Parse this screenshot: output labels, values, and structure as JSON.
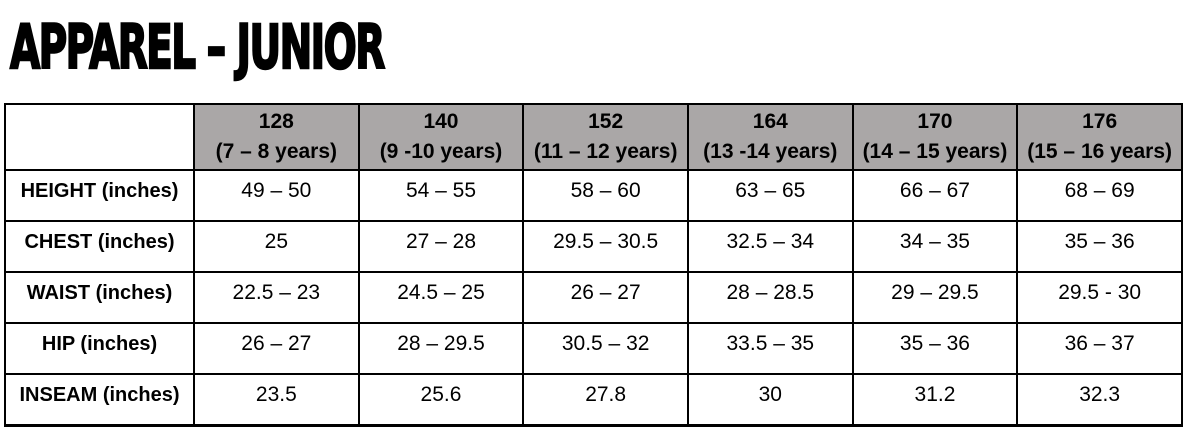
{
  "page": {
    "title": "APPAREL – JUNIOR"
  },
  "colors": {
    "header_bg": "#aaa7a7",
    "border": "#000000",
    "text": "#000000"
  },
  "size_chart": {
    "corner_label": "",
    "column_headers": [
      {
        "size": "128",
        "ages": "(7 – 8 years)"
      },
      {
        "size": "140",
        "ages": "(9 -10 years)"
      },
      {
        "size": "152",
        "ages": "(11 – 12 years)"
      },
      {
        "size": "164",
        "ages": "(13 -14 years)"
      },
      {
        "size": "170",
        "ages": "(14 – 15 years)"
      },
      {
        "size": "176",
        "ages": "(15 – 16 years)"
      }
    ],
    "rows": [
      {
        "label": "HEIGHT (inches)",
        "values": [
          "49 – 50",
          "54 – 55",
          "58 – 60",
          "63 – 65",
          "66 – 67",
          "68 – 69"
        ]
      },
      {
        "label": "CHEST (inches)",
        "values": [
          "25",
          "27 – 28",
          "29.5 – 30.5",
          "32.5 – 34",
          "34 – 35",
          "35 – 36"
        ]
      },
      {
        "label": "WAIST (inches)",
        "values": [
          "22.5 – 23",
          "24.5 – 25",
          "26 – 27",
          "28 – 28.5",
          "29 – 29.5",
          "29.5 - 30"
        ]
      },
      {
        "label": "HIP (inches)",
        "values": [
          "26 – 27",
          "28 – 29.5",
          "30.5 – 32",
          "33.5 – 35",
          "35 – 36",
          "36 – 37"
        ]
      },
      {
        "label": "INSEAM (inches)",
        "values": [
          "23.5",
          "25.6",
          "27.8",
          "30",
          "31.2",
          "32.3"
        ]
      }
    ]
  }
}
